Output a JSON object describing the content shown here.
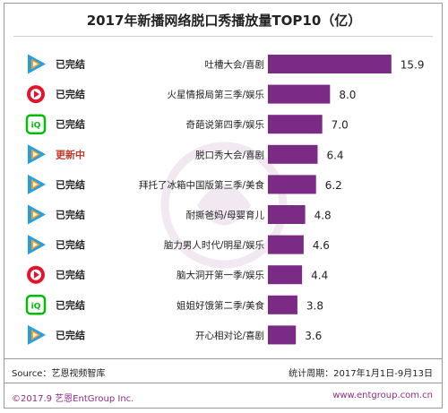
{
  "chart_data": {
    "type": "bar",
    "orientation": "horizontal",
    "title": "2017年新播网络脱口秀播放量TOP10（亿）",
    "bar_color": "#7b2a86",
    "xlim": [
      0,
      16.5
    ],
    "categories": [
      "吐槽大会/喜剧",
      "火星情报局第三季/娱乐",
      "奇葩说第四季/娱乐",
      "脱口秀大会/喜剧",
      "拜托了冰箱中国版第三季/美食",
      "耐撕爸妈/母婴育儿",
      "脑力男人时代/明星/娱乐",
      "脑大洞开第一季/娱乐",
      "姐姐好饿第二季/美食",
      "开心相对论/喜剧"
    ],
    "values": [
      15.9,
      8.0,
      7.0,
      6.4,
      6.2,
      4.8,
      4.6,
      4.4,
      3.8,
      3.6
    ],
    "value_labels": [
      "15.9",
      "8.0",
      "7.0",
      "6.4",
      "6.2",
      "4.8",
      "4.6",
      "4.4",
      "3.8",
      "3.6"
    ],
    "status": [
      "已完结",
      "已完结",
      "已完结",
      "更新中",
      "已完结",
      "已完结",
      "已完结",
      "已完结",
      "已完结",
      "已完结"
    ],
    "status_colors": {
      "已完结": "#222222",
      "更新中": "#c0392b"
    },
    "platform_icons": [
      "tencent-video-icon",
      "youku-icon",
      "iqiyi-icon",
      "tencent-video-icon",
      "tencent-video-icon",
      "tencent-video-icon",
      "tencent-video-icon",
      "youku-icon",
      "iqiyi-icon",
      "tencent-video-icon"
    ],
    "icon_colors": {
      "tencent-video-icon": "#22a0e0",
      "youku-icon": "#e3152c",
      "iqiyi-icon": "#00be06"
    }
  },
  "footer": {
    "source": "Source：艺恩视频智库",
    "period": "统计周期：2017年1月1日-9月13日",
    "copyright": "©2017.9  艺恩EntGroup Inc.",
    "website": "www.entgroup.com.cn"
  }
}
